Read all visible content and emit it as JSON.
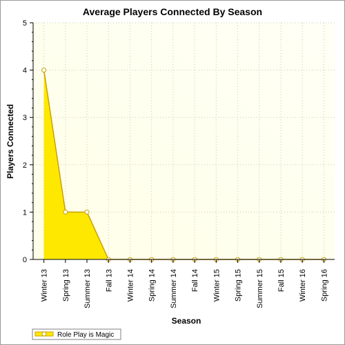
{
  "chart_data": {
    "type": "area",
    "title": "Average Players Connected By Season",
    "xlabel": "Season",
    "ylabel": "Players Connected",
    "categories": [
      "Winter 13",
      "Spring 13",
      "Summer 13",
      "Fall 13",
      "Winter 14",
      "Spring 14",
      "Summer 14",
      "Fall 14",
      "Winter 15",
      "Spring 15",
      "Summer 15",
      "Fall 15",
      "Winter 16",
      "Spring 16"
    ],
    "ylim": [
      0,
      5
    ],
    "yticks": [
      "0",
      "1",
      "2",
      "3",
      "4",
      "5"
    ],
    "grid": true,
    "legend_position": "bottom-left",
    "series": [
      {
        "name": "Role Play is Magic",
        "values": [
          4,
          1,
          1,
          0,
          0,
          0,
          0,
          0,
          0,
          0,
          0,
          0,
          0,
          0
        ],
        "color": "#FFE800",
        "line_color": "#C8A000"
      }
    ],
    "colors": {
      "plot_bg_start": "#FFFFE8",
      "plot_bg_end": "#FFFFF6",
      "grid": "#c9c9b0",
      "axis": "#000000"
    }
  }
}
